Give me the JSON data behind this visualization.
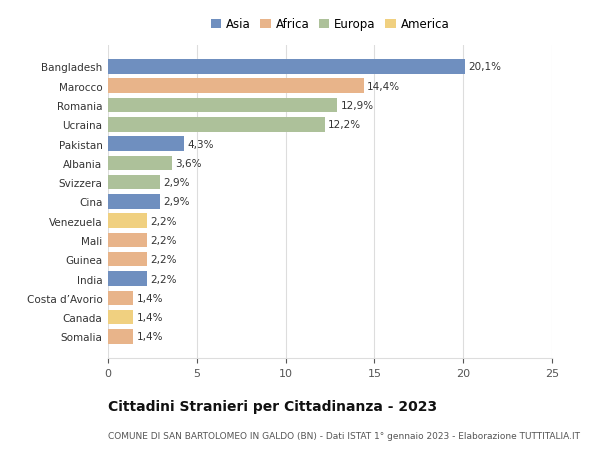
{
  "title": "Cittadini Stranieri per Cittadinanza - 2023",
  "subtitle": "COMUNE DI SAN BARTOLOMEO IN GALDO (BN) - Dati ISTAT 1° gennaio 2023 - Elaborazione TUTTITALIA.IT",
  "categories": [
    "Bangladesh",
    "Marocco",
    "Romania",
    "Ucraina",
    "Pakistan",
    "Albania",
    "Svizzera",
    "Cina",
    "Venezuela",
    "Mali",
    "Guinea",
    "India",
    "Costa d’Avorio",
    "Canada",
    "Somalia"
  ],
  "values": [
    20.1,
    14.4,
    12.9,
    12.2,
    4.3,
    3.6,
    2.9,
    2.9,
    2.2,
    2.2,
    2.2,
    2.2,
    1.4,
    1.4,
    1.4
  ],
  "labels": [
    "20,1%",
    "14,4%",
    "12,9%",
    "12,2%",
    "4,3%",
    "3,6%",
    "2,9%",
    "2,9%",
    "2,2%",
    "2,2%",
    "2,2%",
    "2,2%",
    "1,4%",
    "1,4%",
    "1,4%"
  ],
  "colors": [
    "#6f8fbf",
    "#e8b48a",
    "#adc19a",
    "#adc19a",
    "#6f8fbf",
    "#adc19a",
    "#adc19a",
    "#6f8fbf",
    "#f0d080",
    "#e8b48a",
    "#e8b48a",
    "#6f8fbf",
    "#e8b48a",
    "#f0d080",
    "#e8b48a"
  ],
  "legend": {
    "Asia": "#6f8fbf",
    "Africa": "#e8b48a",
    "Europa": "#adc19a",
    "America": "#f0d080"
  },
  "xlim": [
    0,
    25
  ],
  "xticks": [
    0,
    5,
    10,
    15,
    20,
    25
  ],
  "background_color": "#ffffff",
  "grid_color": "#dddddd",
  "bar_height": 0.75,
  "label_fontsize": 7.5,
  "title_fontsize": 10,
  "subtitle_fontsize": 6.5,
  "ytick_fontsize": 7.5,
  "xtick_fontsize": 8
}
